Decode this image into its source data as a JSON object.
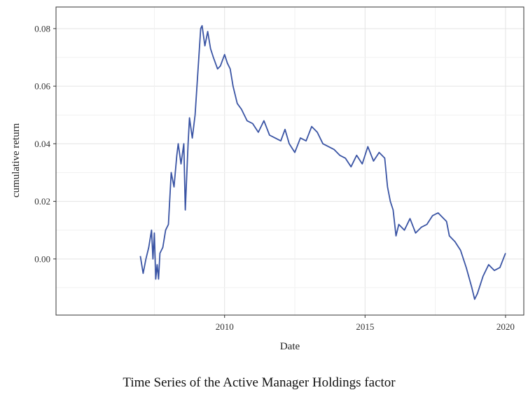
{
  "caption": "Time Series of the Active Manager Holdings factor",
  "chart_data": {
    "type": "line",
    "title": "",
    "xlabel": "Date",
    "ylabel": "cumulative return",
    "xlim": [
      2004.0,
      2020.65
    ],
    "ylim": [
      -0.0195,
      0.0875
    ],
    "x_ticks": [
      2010,
      2015,
      2020
    ],
    "x_tick_labels": [
      "2010",
      "2015",
      "2020"
    ],
    "y_ticks": [
      0.0,
      0.02,
      0.04,
      0.06,
      0.08
    ],
    "y_tick_labels": [
      "0.00",
      "0.02",
      "0.04",
      "0.06",
      "0.08"
    ],
    "grid": true,
    "legend": "none",
    "line_color": "#3a54a4",
    "series": [
      {
        "x": [
          2007.0,
          2007.1,
          2007.2,
          2007.3,
          2007.4,
          2007.45,
          2007.5,
          2007.55,
          2007.6,
          2007.65,
          2007.7,
          2007.8,
          2007.9,
          2008.0,
          2008.1,
          2008.2,
          2008.3,
          2008.35,
          2008.45,
          2008.55,
          2008.6,
          2008.7,
          2008.75,
          2008.85,
          2008.95,
          2009.05,
          2009.15,
          2009.2,
          2009.3,
          2009.4,
          2009.5,
          2009.6,
          2009.75,
          2009.85,
          2010.0,
          2010.1,
          2010.2,
          2010.3,
          2010.45,
          2010.6,
          2010.8,
          2011.0,
          2011.2,
          2011.4,
          2011.6,
          2011.8,
          2012.0,
          2012.15,
          2012.3,
          2012.5,
          2012.7,
          2012.9,
          2013.1,
          2013.3,
          2013.5,
          2013.7,
          2013.9,
          2014.1,
          2014.3,
          2014.5,
          2014.7,
          2014.9,
          2015.1,
          2015.3,
          2015.5,
          2015.6,
          2015.7,
          2015.8,
          2015.9,
          2016.0,
          2016.1,
          2016.2,
          2016.4,
          2016.6,
          2016.8,
          2017.0,
          2017.2,
          2017.4,
          2017.6,
          2017.8,
          2017.9,
          2018.0,
          2018.2,
          2018.4,
          2018.6,
          2018.8,
          2018.9,
          2019.0,
          2019.2,
          2019.4,
          2019.6,
          2019.8,
          2020.0
        ],
        "y": [
          0.001,
          -0.005,
          0.0,
          0.004,
          0.01,
          0.0,
          0.009,
          -0.007,
          -0.002,
          -0.007,
          0.002,
          0.004,
          0.01,
          0.012,
          0.03,
          0.025,
          0.036,
          0.04,
          0.033,
          0.04,
          0.017,
          0.04,
          0.049,
          0.042,
          0.05,
          0.065,
          0.08,
          0.081,
          0.074,
          0.079,
          0.073,
          0.07,
          0.066,
          0.067,
          0.071,
          0.068,
          0.066,
          0.06,
          0.054,
          0.052,
          0.048,
          0.047,
          0.044,
          0.048,
          0.043,
          0.042,
          0.041,
          0.045,
          0.04,
          0.037,
          0.042,
          0.041,
          0.046,
          0.044,
          0.04,
          0.039,
          0.038,
          0.036,
          0.035,
          0.032,
          0.036,
          0.033,
          0.039,
          0.034,
          0.037,
          0.036,
          0.035,
          0.025,
          0.02,
          0.017,
          0.008,
          0.012,
          0.01,
          0.014,
          0.009,
          0.011,
          0.012,
          0.015,
          0.016,
          0.014,
          0.013,
          0.008,
          0.006,
          0.003,
          -0.003,
          -0.01,
          -0.014,
          -0.012,
          -0.006,
          -0.002,
          -0.004,
          -0.003,
          0.002
        ]
      }
    ]
  }
}
